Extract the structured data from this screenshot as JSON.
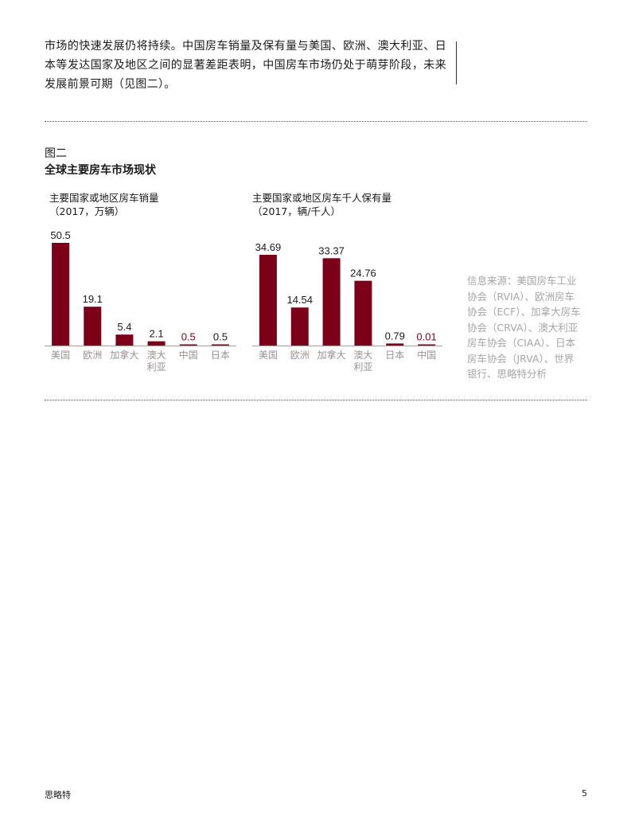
{
  "paragraph": "市场的快速发展仍将持续。中国房车销量及保有量与美国、欧洲、澳大利亚、日本等发达国家及地区之间的显著差距表明，中国房车市场仍处于萌芽阶段，未来发展前景可期（见图二）。",
  "figure": {
    "label": "图二",
    "title": "全球主要房车市场现状"
  },
  "chart_data": [
    {
      "type": "bar",
      "title": "主要国家或地区房车销量",
      "subtitle": "（2017，万辆）",
      "categories": [
        "美国",
        "欧洲",
        "加拿大",
        "澳大\n利亚",
        "中国",
        "日本"
      ],
      "values": [
        50.5,
        19.1,
        5.4,
        2.1,
        0.5,
        0.5
      ],
      "labels": [
        "50.5",
        "19.1",
        "5.4",
        "2.1",
        "0.5",
        "0.5"
      ],
      "highlight": "中国",
      "ylim": [
        0,
        50.5
      ]
    },
    {
      "type": "bar",
      "title": "主要国家或地区房车千人保有量",
      "subtitle": "（2017，辆/千人）",
      "categories": [
        "美国",
        "欧洲",
        "加拿大",
        "澳大\n利亚",
        "日本",
        "中国"
      ],
      "values": [
        34.69,
        14.54,
        33.37,
        24.76,
        0.79,
        0.01
      ],
      "labels": [
        "34.69",
        "14.54",
        "33.37",
        "24.76",
        "0.79",
        "0.01"
      ],
      "highlight": "中国",
      "ylim": [
        0,
        34.69
      ]
    }
  ],
  "source_lines": [
    "信息来源：美国房车工业",
    "协会（RVIA）、欧洲房车",
    "协会（ECF）、加拿大房车",
    "协会（CRVA）、澳大利亚",
    "房车协会（CIAA）、日本",
    "房车协会（JRVA）、世界",
    "银行、思略特分析"
  ],
  "footer": {
    "brand": "思略特",
    "page": "5"
  },
  "colors": {
    "bar": "#7d0019",
    "highlight_text": "#7d0019",
    "axis": "#b0a8a8",
    "category": "#9a9090",
    "source": "#a5a5a5"
  }
}
